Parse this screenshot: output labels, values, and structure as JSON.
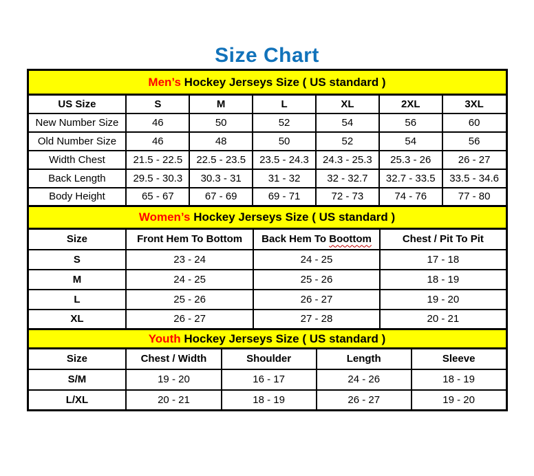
{
  "page": {
    "title": "Size Chart"
  },
  "colors": {
    "title_blue": "#1172BA",
    "banner_yellow": "#FFFF00",
    "accent_red": "#FF0000",
    "border_black": "#000000",
    "squiggle_red": "#C00000"
  },
  "sections": [
    {
      "id": "men",
      "banner": {
        "highlight": "Men’s",
        "rest": " Hockey Jerseys Size ( US standard )"
      },
      "headers": [
        "US Size",
        "S",
        "M",
        "L",
        "XL",
        "2XL",
        "3XL"
      ],
      "rows": [
        [
          "New Number Size",
          "46",
          "50",
          "52",
          "54",
          "56",
          "60"
        ],
        [
          "Old Number Size",
          "46",
          "48",
          "50",
          "52",
          "54",
          "56"
        ],
        [
          "Width Chest",
          "21.5 - 22.5",
          "22.5 - 23.5",
          "23.5 - 24.3",
          "24.3 - 25.3",
          "25.3 - 26",
          "26 - 27"
        ],
        [
          "Back Length",
          "29.5 - 30.3",
          "30.3 - 31",
          "31 - 32",
          "32 - 32.7",
          "32.7 - 33.5",
          "33.5 - 34.6"
        ],
        [
          "Body Height",
          "65 - 67",
          "67 - 69",
          "69 - 71",
          "72 - 73",
          "74 - 76",
          "77 - 80"
        ]
      ],
      "col_widths": [
        "20.6%",
        "13.2%",
        "13.2%",
        "13.2%",
        "13.2%",
        "13.2%",
        "13.4%"
      ]
    },
    {
      "id": "women",
      "banner": {
        "highlight": "Women’s",
        "rest": " Hockey Jerseys Size ( US standard )"
      },
      "headers": [
        "Size",
        "Front Hem To Bottom",
        "Back Hem To Boottom",
        "Chest / Pit To Pit"
      ],
      "header_squiggles": {
        "2": "Boottom"
      },
      "rows": [
        [
          "S",
          "23 - 24",
          "24 - 25",
          "17 - 18"
        ],
        [
          "M",
          "24 - 25",
          "25 - 26",
          "18 - 19"
        ],
        [
          "L",
          "25 - 26",
          "26 - 27",
          "19 - 20"
        ],
        [
          "XL",
          "26 - 27",
          "27 - 28",
          "20 - 21"
        ]
      ],
      "col_widths": [
        "20.6%",
        "26.5%",
        "26.5%",
        "26.4%"
      ]
    },
    {
      "id": "youth",
      "banner": {
        "highlight": "Youth",
        "rest": " Hockey Jerseys Size ( US standard )"
      },
      "headers": [
        "Size",
        "Chest / Width",
        "Shoulder",
        "Length",
        "Sleeve"
      ],
      "rows": [
        [
          "S/M",
          "19 - 20",
          "16 - 17",
          "24 - 26",
          "18 - 19"
        ],
        [
          "L/XL",
          "20 - 21",
          "18 - 19",
          "26 - 27",
          "19 - 20"
        ]
      ],
      "col_widths": [
        "20.6%",
        "19.85%",
        "19.85%",
        "19.85%",
        "19.85%"
      ]
    }
  ]
}
